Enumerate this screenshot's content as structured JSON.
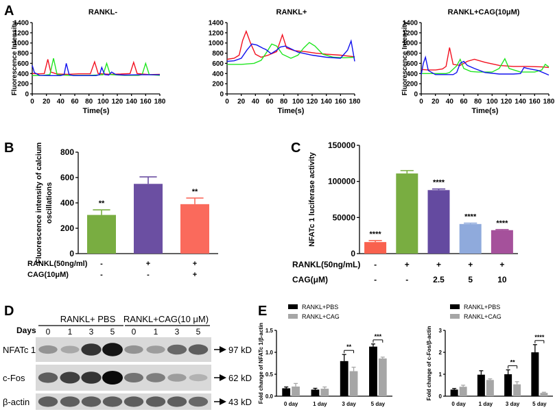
{
  "panel_letters": {
    "A": "A",
    "B": "B",
    "C": "C",
    "D": "D",
    "E": "E"
  },
  "chart_data": [
    {
      "id": "A1",
      "type": "line",
      "title": "RANKL-",
      "xlabel": "Time(s)",
      "ylabel": "Fluorescence Intensity",
      "xlim": [
        0,
        180
      ],
      "ylim": [
        0,
        1400
      ],
      "xticks": [
        0,
        20,
        40,
        60,
        80,
        100,
        120,
        140,
        160,
        180
      ],
      "yticks": [
        0,
        200,
        400,
        600,
        800,
        1000,
        1200,
        1400
      ],
      "series": [
        {
          "name": "red",
          "color": "#f20f1e",
          "points": [
            [
              0,
              400
            ],
            [
              10,
              395
            ],
            [
              17,
              400
            ],
            [
              22,
              680
            ],
            [
              26,
              430
            ],
            [
              35,
              390
            ],
            [
              50,
              385
            ],
            [
              65,
              395
            ],
            [
              82,
              395
            ],
            [
              88,
              630
            ],
            [
              93,
              400
            ],
            [
              110,
              385
            ],
            [
              125,
              390
            ],
            [
              138,
              400
            ],
            [
              143,
              620
            ],
            [
              148,
              400
            ],
            [
              165,
              380
            ],
            [
              180,
              385
            ]
          ]
        },
        {
          "name": "green",
          "color": "#1fe61f",
          "points": [
            [
              0,
              360
            ],
            [
              15,
              365
            ],
            [
              25,
              380
            ],
            [
              30,
              700
            ],
            [
              35,
              380
            ],
            [
              50,
              365
            ],
            [
              80,
              365
            ],
            [
              100,
              375
            ],
            [
              105,
              600
            ],
            [
              110,
              380
            ],
            [
              130,
              365
            ],
            [
              150,
              365
            ],
            [
              155,
              380
            ],
            [
              160,
              600
            ],
            [
              165,
              380
            ],
            [
              180,
              365
            ]
          ]
        },
        {
          "name": "blue",
          "color": "#1010ee",
          "points": [
            [
              0,
              560
            ],
            [
              3,
              420
            ],
            [
              10,
              365
            ],
            [
              25,
              360
            ],
            [
              40,
              360
            ],
            [
              45,
              380
            ],
            [
              48,
              600
            ],
            [
              52,
              380
            ],
            [
              58,
              360
            ],
            [
              75,
              360
            ],
            [
              90,
              360
            ],
            [
              95,
              380
            ],
            [
              98,
              520
            ],
            [
              102,
              380
            ],
            [
              108,
              370
            ],
            [
              112,
              430
            ],
            [
              118,
              380
            ],
            [
              130,
              370
            ],
            [
              150,
              375
            ],
            [
              165,
              375
            ],
            [
              180,
              375
            ]
          ]
        }
      ]
    },
    {
      "id": "A2",
      "type": "line",
      "title": "RANKL+",
      "xlabel": "Time(s)",
      "ylabel": "",
      "xlim": [
        0,
        180
      ],
      "ylim": [
        0,
        1400
      ],
      "xticks": [
        0,
        20,
        40,
        60,
        80,
        100,
        120,
        140,
        160,
        180
      ],
      "yticks": [
        0,
        200,
        400,
        600,
        800,
        1000,
        1200,
        1400
      ],
      "series": [
        {
          "name": "red",
          "color": "#f20f1e",
          "points": [
            [
              0,
              680
            ],
            [
              10,
              700
            ],
            [
              17,
              760
            ],
            [
              22,
              1050
            ],
            [
              27,
              1230
            ],
            [
              33,
              1000
            ],
            [
              40,
              780
            ],
            [
              48,
              720
            ],
            [
              58,
              760
            ],
            [
              70,
              830
            ],
            [
              78,
              1160
            ],
            [
              84,
              900
            ],
            [
              95,
              850
            ],
            [
              110,
              830
            ],
            [
              125,
              800
            ],
            [
              140,
              780
            ],
            [
              160,
              760
            ],
            [
              180,
              730
            ]
          ]
        },
        {
          "name": "green",
          "color": "#1fe61f",
          "points": [
            [
              0,
              580
            ],
            [
              20,
              580
            ],
            [
              38,
              600
            ],
            [
              48,
              660
            ],
            [
              55,
              800
            ],
            [
              63,
              980
            ],
            [
              70,
              940
            ],
            [
              78,
              780
            ],
            [
              90,
              700
            ],
            [
              100,
              760
            ],
            [
              108,
              900
            ],
            [
              116,
              1010
            ],
            [
              124,
              940
            ],
            [
              135,
              780
            ],
            [
              150,
              720
            ],
            [
              165,
              710
            ],
            [
              180,
              720
            ]
          ]
        },
        {
          "name": "blue",
          "color": "#1010ee",
          "points": [
            [
              0,
              640
            ],
            [
              10,
              650
            ],
            [
              20,
              700
            ],
            [
              28,
              860
            ],
            [
              35,
              980
            ],
            [
              42,
              960
            ],
            [
              50,
              900
            ],
            [
              55,
              870
            ],
            [
              62,
              790
            ],
            [
              70,
              860
            ],
            [
              75,
              920
            ],
            [
              82,
              940
            ],
            [
              88,
              900
            ],
            [
              100,
              820
            ],
            [
              120,
              760
            ],
            [
              140,
              720
            ],
            [
              160,
              700
            ],
            [
              170,
              860
            ],
            [
              175,
              1040
            ],
            [
              180,
              640
            ]
          ]
        }
      ]
    },
    {
      "id": "A3",
      "type": "line",
      "title": "RANKL+CAG(10μM)",
      "xlabel": "Time(s)",
      "ylabel": "Fluorescence Intensity",
      "xlim": [
        0,
        180
      ],
      "ylim": [
        0,
        1400
      ],
      "xticks": [
        0,
        20,
        40,
        60,
        80,
        100,
        120,
        140,
        160,
        180
      ],
      "yticks": [
        0,
        200,
        400,
        600,
        800,
        1000,
        1200,
        1400
      ],
      "series": [
        {
          "name": "red",
          "color": "#f20f1e",
          "points": [
            [
              0,
              480
            ],
            [
              10,
              470
            ],
            [
              20,
              470
            ],
            [
              30,
              490
            ],
            [
              35,
              540
            ],
            [
              40,
              910
            ],
            [
              45,
              580
            ],
            [
              55,
              560
            ],
            [
              65,
              640
            ],
            [
              75,
              680
            ],
            [
              90,
              620
            ],
            [
              110,
              560
            ],
            [
              130,
              540
            ],
            [
              150,
              540
            ],
            [
              170,
              530
            ],
            [
              180,
              520
            ]
          ]
        },
        {
          "name": "green",
          "color": "#1fe61f",
          "points": [
            [
              0,
              400
            ],
            [
              20,
              400
            ],
            [
              35,
              400
            ],
            [
              40,
              420
            ],
            [
              50,
              550
            ],
            [
              55,
              680
            ],
            [
              60,
              500
            ],
            [
              70,
              440
            ],
            [
              80,
              430
            ],
            [
              100,
              430
            ],
            [
              110,
              500
            ],
            [
              118,
              690
            ],
            [
              124,
              500
            ],
            [
              140,
              430
            ],
            [
              160,
              430
            ],
            [
              170,
              470
            ],
            [
              175,
              580
            ],
            [
              180,
              530
            ]
          ]
        },
        {
          "name": "blue",
          "color": "#1010ee",
          "points": [
            [
              0,
              380
            ],
            [
              3,
              600
            ],
            [
              6,
              720
            ],
            [
              10,
              460
            ],
            [
              20,
              380
            ],
            [
              35,
              380
            ],
            [
              45,
              380
            ],
            [
              50,
              420
            ],
            [
              55,
              600
            ],
            [
              60,
              640
            ],
            [
              65,
              560
            ],
            [
              75,
              500
            ],
            [
              90,
              420
            ],
            [
              110,
              390
            ],
            [
              130,
              390
            ],
            [
              140,
              400
            ],
            [
              145,
              520
            ],
            [
              150,
              500
            ],
            [
              165,
              460
            ],
            [
              180,
              370
            ]
          ]
        }
      ]
    },
    {
      "id": "B",
      "type": "bar",
      "ylabel": "Fluorescence intensity of calcium oscillations",
      "ylim": [
        0,
        800
      ],
      "yticks": [
        0,
        200,
        400,
        600,
        800
      ],
      "values": [
        305,
        550,
        390
      ],
      "errors": [
        40,
        55,
        48
      ],
      "colors": [
        "#79ad41",
        "#6b4fa2",
        "#fa6a5c"
      ],
      "sig": [
        "**",
        "",
        "**"
      ],
      "row_labels": [
        "RANKL(50ng/ml)",
        "CAG(10μM)"
      ],
      "row1": [
        "-",
        "+",
        "+"
      ],
      "row2": [
        "-",
        "-",
        "+"
      ]
    },
    {
      "id": "C",
      "type": "bar",
      "ylabel": "NFATc 1 luciferase activity",
      "ylim": [
        0,
        150000
      ],
      "yticks": [
        0,
        50000,
        100000,
        150000
      ],
      "yticklabels": [
        "0",
        "50000",
        "100000",
        "150000"
      ],
      "values": [
        16000,
        111000,
        88000,
        41000,
        32500
      ],
      "errors": [
        2000,
        4000,
        1500,
        1200,
        800
      ],
      "colors": [
        "#f9614e",
        "#79ad41",
        "#644aa0",
        "#8faadc",
        "#a5519b"
      ],
      "sig": [
        "****",
        "",
        "****",
        "****",
        "****"
      ],
      "row_labels": [
        "RANKL(50ng/mL)",
        "CAG(μM)"
      ],
      "row1": [
        "-",
        "+",
        "+",
        "+",
        "+"
      ],
      "row2": [
        "-",
        "-",
        "2.5",
        "5",
        "10"
      ]
    },
    {
      "id": "E1",
      "type": "bar",
      "ylabel": "Fold change of NFATc 1/β-actin",
      "ylim": [
        0,
        1.5
      ],
      "yticks": [
        0,
        0.5,
        1.0,
        1.5
      ],
      "yticklabels": [
        "0.0",
        "0.5",
        "1.0",
        "1.5"
      ],
      "categories": [
        "0 day",
        "1 day",
        "3 day",
        "5 day"
      ],
      "series": [
        {
          "name": "RANKL+PBS",
          "color": "#000000",
          "values": [
            0.18,
            0.15,
            0.8,
            1.13
          ],
          "errors": [
            0.03,
            0.03,
            0.15,
            0.06
          ]
        },
        {
          "name": "RANKL+CAG",
          "color": "#a6a6a6",
          "values": [
            0.22,
            0.17,
            0.57,
            0.86
          ],
          "errors": [
            0.07,
            0.04,
            0.09,
            0.03
          ]
        }
      ],
      "sig": {
        "3 day": "**",
        "5 day": "***"
      }
    },
    {
      "id": "E2",
      "type": "bar",
      "ylabel": "Fold change of c-Fos/β-actin",
      "ylim": [
        0,
        3
      ],
      "yticks": [
        0,
        1,
        2,
        3
      ],
      "yticklabels": [
        "0",
        "1",
        "2",
        "3"
      ],
      "categories": [
        "0 day",
        "1 day",
        "3 day",
        "5 day"
      ],
      "series": [
        {
          "name": "RANKL+PBS",
          "color": "#000000",
          "values": [
            0.3,
            0.98,
            1.0,
            2.0
          ],
          "errors": [
            0.05,
            0.18,
            0.2,
            0.35
          ]
        },
        {
          "name": "RANKL+CAG",
          "color": "#a6a6a6",
          "values": [
            0.43,
            0.74,
            0.54,
            0.15
          ],
          "errors": [
            0.07,
            0.05,
            0.12,
            0.03
          ]
        }
      ],
      "sig": {
        "3 day": "**",
        "5 day": "****"
      }
    }
  ],
  "blot": {
    "days_label": "Days",
    "group1": "RANKL+ PBS",
    "group2": "RANKL+CAG(10 μM)",
    "days": [
      "0",
      "1",
      "3",
      "5",
      "0",
      "1",
      "3",
      "5"
    ],
    "rows": [
      {
        "name": "NFATc 1",
        "kd": "97 kD",
        "intensity": [
          0.35,
          0.25,
          0.8,
          0.95,
          0.35,
          0.3,
          0.55,
          0.6
        ]
      },
      {
        "name": "c-Fos",
        "kd": "62 kD",
        "intensity": [
          0.6,
          0.75,
          0.8,
          1.0,
          0.5,
          0.45,
          0.3,
          0.2
        ]
      },
      {
        "name": "β-actin",
        "kd": "43 kD",
        "intensity": [
          0.6,
          0.6,
          0.6,
          0.6,
          0.6,
          0.6,
          0.6,
          0.55
        ]
      }
    ]
  }
}
